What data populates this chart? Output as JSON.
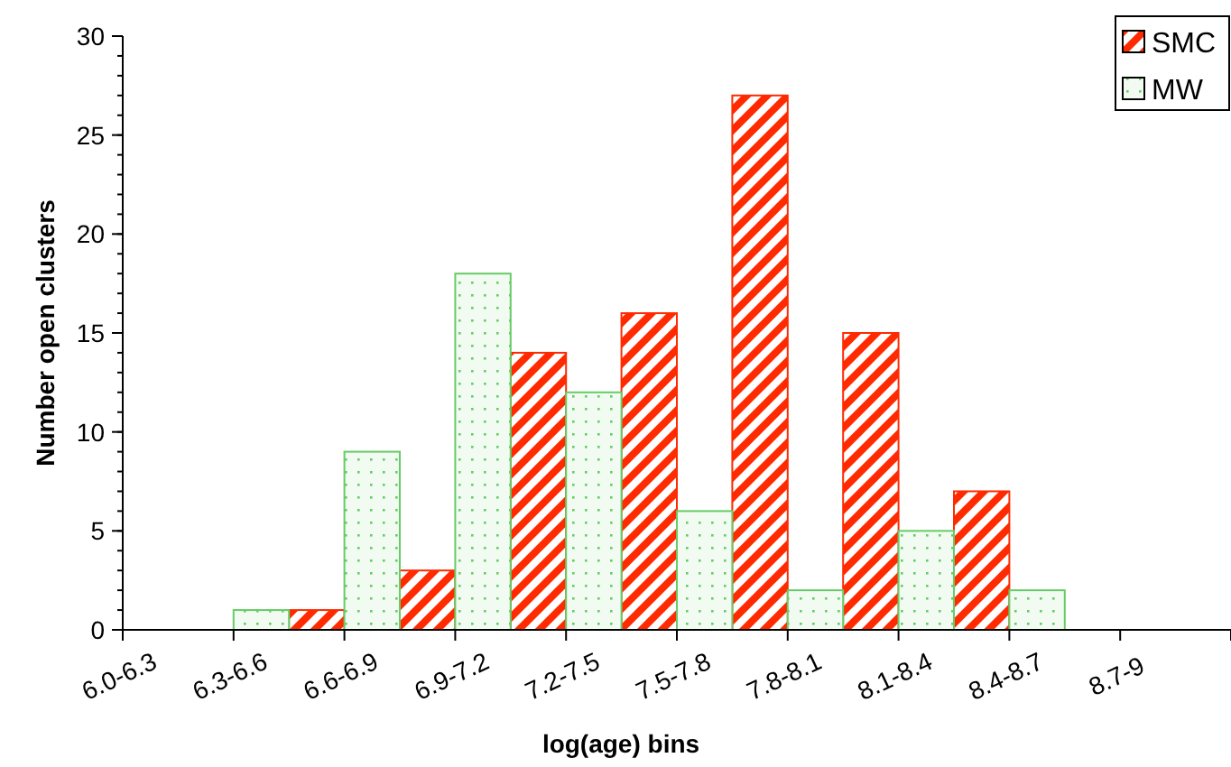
{
  "chart_data": {
    "type": "bar",
    "xlabel": "log(age) bins",
    "ylabel": "Number open clusters",
    "categories": [
      "6.0-6.3",
      "6.3-6.6",
      "6.6-6.9",
      "6.9-7.2",
      "7.2-7.5",
      "7.5-7.8",
      "7.8-8.1",
      "8.1-8.4",
      "8.4-8.7",
      "8.7-9"
    ],
    "series": [
      {
        "name": "SMC",
        "color": "#ff2a00",
        "values": [
          0,
          1,
          3,
          14,
          16,
          27,
          15,
          7,
          0,
          0
        ]
      },
      {
        "name": "MW",
        "color": "#66cc66",
        "values": [
          0,
          1,
          9,
          18,
          12,
          6,
          2,
          5,
          2,
          0
        ]
      }
    ],
    "ylim": [
      0,
      30
    ],
    "yticks": [
      0,
      5,
      10,
      15,
      20,
      25,
      30
    ],
    "grid": false,
    "legend": "top right"
  }
}
